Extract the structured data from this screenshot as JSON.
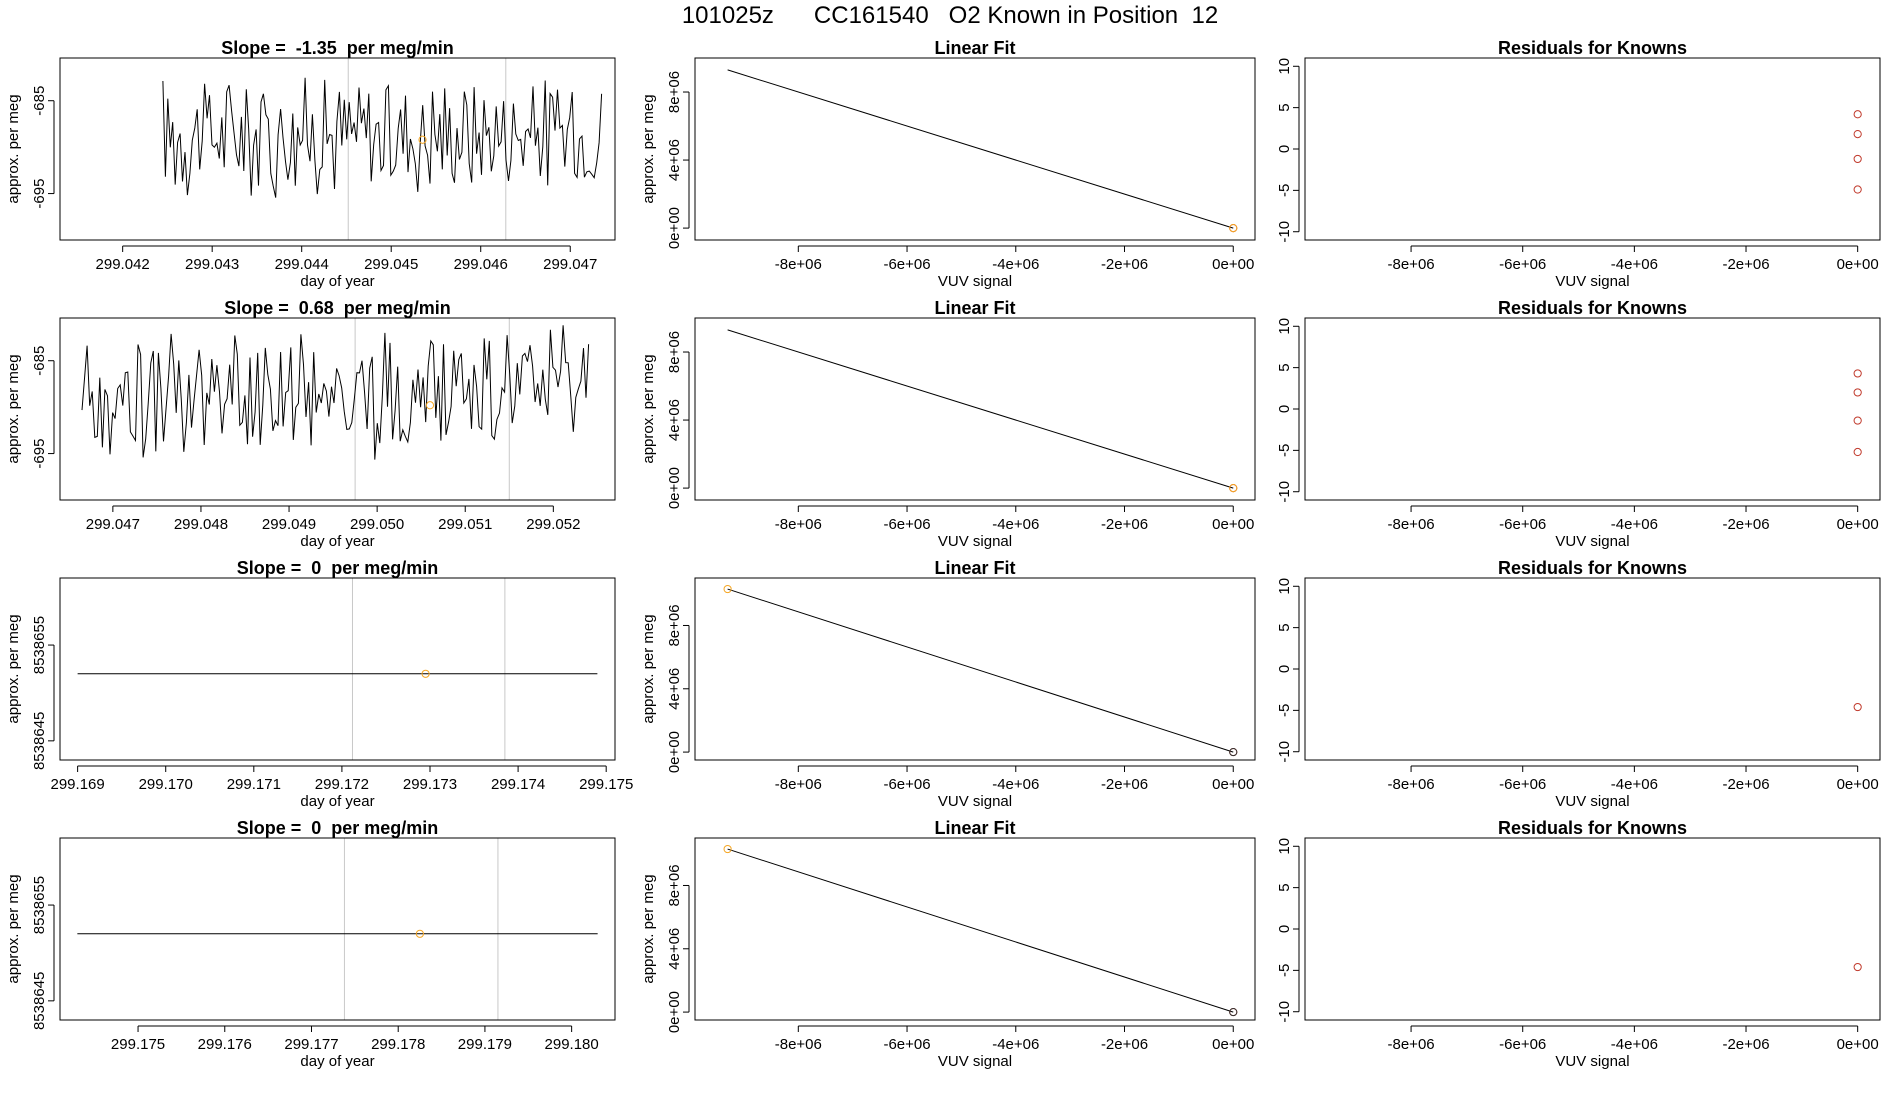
{
  "page": {
    "title": "101025z      CC161540   O2 Known in Position  12"
  },
  "colors": {
    "line": "#000000",
    "point_orange": "#f5a623",
    "point_red": "#c0392b",
    "vline": "#c8c8c8"
  },
  "chart_data": [
    {
      "type": "line",
      "row": 1,
      "col": 1,
      "title": "Slope =  -1.35  per meg/min",
      "xlabel": "day of year",
      "ylabel": "approx. per meg",
      "xlim": [
        299.0413,
        299.0475
      ],
      "ylim": [
        -700,
        -680.4
      ],
      "xticks": [
        299.042,
        299.043,
        299.044,
        299.045,
        299.046,
        299.047
      ],
      "xtick_labels": [
        "299.042",
        "299.043",
        "299.044",
        "299.045",
        "299.046",
        "299.047"
      ],
      "yticks": [
        -685,
        -695
      ],
      "ytick_labels": [
        "-685",
        "-695"
      ],
      "vlines": [
        299.04452,
        299.04628
      ],
      "points": [
        {
          "x": 299.04535,
          "y": -689.2,
          "color": "orange"
        }
      ],
      "noise": {
        "start": 299.04245,
        "end": 299.04735,
        "n": 180,
        "center": -688.5,
        "amp": 7.5,
        "seed": 17
      }
    },
    {
      "type": "scatter",
      "row": 1,
      "col": 2,
      "title": "Linear Fit",
      "xlabel": "VUV signal",
      "ylabel": "approx. per meg",
      "xlim": [
        -9900000,
        400000
      ],
      "ylim": [
        -700000,
        10000000
      ],
      "xticks": [
        -8000000,
        -6000000,
        -4000000,
        -2000000,
        0
      ],
      "xtick_labels": [
        "-8e+06",
        "-6e+06",
        "-4e+06",
        "-2e+06",
        "0e+00"
      ],
      "yticks": [
        0,
        4000000,
        8000000
      ],
      "ytick_labels": [
        "0e+00",
        "4e+06",
        "8e+06"
      ],
      "fit_line": [
        [
          -9300000,
          9300000
        ],
        [
          0,
          0
        ]
      ],
      "points": [
        {
          "x": 0,
          "y": 0,
          "color": "red"
        },
        {
          "x": 0,
          "y": 0,
          "color": "orange"
        }
      ]
    },
    {
      "type": "scatter",
      "row": 1,
      "col": 3,
      "title": "Residuals for Knowns",
      "xlabel": "VUV signal",
      "ylabel": "",
      "xlim": [
        -9900000,
        400000
      ],
      "ylim": [
        -11,
        11
      ],
      "xticks": [
        -8000000,
        -6000000,
        -4000000,
        -2000000,
        0
      ],
      "xtick_labels": [
        "-8e+06",
        "-6e+06",
        "-4e+06",
        "-2e+06",
        "0e+00"
      ],
      "yticks": [
        -10,
        -5,
        0,
        5,
        10
      ],
      "ytick_labels": [
        "-10",
        "-5",
        "0",
        "5",
        "10"
      ],
      "points": [
        {
          "x": 0,
          "y": 4.2,
          "color": "red"
        },
        {
          "x": 0,
          "y": 1.8,
          "color": "red"
        },
        {
          "x": 0,
          "y": -1.2,
          "color": "red"
        },
        {
          "x": 0,
          "y": -4.9,
          "color": "red"
        }
      ]
    },
    {
      "type": "line",
      "row": 2,
      "col": 1,
      "title": "Slope =  0.68  per meg/min",
      "xlabel": "day of year",
      "ylabel": "approx. per meg",
      "xlim": [
        299.0464,
        299.0527
      ],
      "ylim": [
        -700,
        -680.4
      ],
      "xticks": [
        299.047,
        299.048,
        299.049,
        299.05,
        299.051,
        299.052
      ],
      "xtick_labels": [
        "299.047",
        "299.048",
        "299.049",
        "299.050",
        "299.051",
        "299.052"
      ],
      "yticks": [
        -685,
        -695
      ],
      "ytick_labels": [
        "-685",
        "-695"
      ],
      "vlines": [
        299.04975,
        299.0515
      ],
      "points": [
        {
          "x": 299.0506,
          "y": -689.8,
          "color": "orange"
        }
      ],
      "noise": {
        "start": 299.04665,
        "end": 299.0524,
        "n": 200,
        "center": -688.8,
        "amp": 7.8,
        "seed": 53
      }
    },
    {
      "type": "scatter",
      "row": 2,
      "col": 2,
      "title": "Linear Fit",
      "xlabel": "VUV signal",
      "ylabel": "approx. per meg",
      "xlim": [
        -9900000,
        400000
      ],
      "ylim": [
        -700000,
        10000000
      ],
      "xticks": [
        -8000000,
        -6000000,
        -4000000,
        -2000000,
        0
      ],
      "xtick_labels": [
        "-8e+06",
        "-6e+06",
        "-4e+06",
        "-2e+06",
        "0e+00"
      ],
      "yticks": [
        0,
        4000000,
        8000000
      ],
      "ytick_labels": [
        "0e+00",
        "4e+06",
        "8e+06"
      ],
      "fit_line": [
        [
          -9300000,
          9300000
        ],
        [
          0,
          0
        ]
      ],
      "points": [
        {
          "x": 0,
          "y": 0,
          "color": "red"
        },
        {
          "x": 0,
          "y": 0,
          "color": "orange"
        }
      ]
    },
    {
      "type": "scatter",
      "row": 2,
      "col": 3,
      "title": "Residuals for Knowns",
      "xlabel": "VUV signal",
      "ylabel": "",
      "xlim": [
        -9900000,
        400000
      ],
      "ylim": [
        -11,
        11
      ],
      "xticks": [
        -8000000,
        -6000000,
        -4000000,
        -2000000,
        0
      ],
      "xtick_labels": [
        "-8e+06",
        "-6e+06",
        "-4e+06",
        "-2e+06",
        "0e+00"
      ],
      "yticks": [
        -10,
        -5,
        0,
        5,
        10
      ],
      "ytick_labels": [
        "-10",
        "-5",
        "0",
        "5",
        "10"
      ],
      "points": [
        {
          "x": 0,
          "y": 4.3,
          "color": "red"
        },
        {
          "x": 0,
          "y": 2.0,
          "color": "red"
        },
        {
          "x": 0,
          "y": -1.4,
          "color": "red"
        },
        {
          "x": 0,
          "y": -5.2,
          "color": "red"
        }
      ]
    },
    {
      "type": "line",
      "row": 3,
      "col": 1,
      "title": "Slope =  0  per meg/min",
      "xlabel": "day of year",
      "ylabel": "approx. per meg",
      "xlim": [
        299.1688,
        299.1751
      ],
      "ylim": [
        8538643,
        8538662
      ],
      "xticks": [
        299.169,
        299.17,
        299.171,
        299.172,
        299.173,
        299.174,
        299.175
      ],
      "xtick_labels": [
        "299.169",
        "299.170",
        "299.171",
        "299.172",
        "299.173",
        "299.174",
        "299.175"
      ],
      "yticks": [
        8538645,
        8538655
      ],
      "ytick_labels": [
        "8538645",
        "8538655"
      ],
      "vlines": [
        299.17212,
        299.17385
      ],
      "points": [
        {
          "x": 299.17295,
          "y": 8538652,
          "color": "orange"
        }
      ],
      "flat": {
        "start": 299.169,
        "end": 299.1749,
        "y": 8538652
      }
    },
    {
      "type": "scatter",
      "row": 3,
      "col": 2,
      "title": "Linear Fit",
      "xlabel": "VUV signal",
      "ylabel": "approx. per meg",
      "xlim": [
        -9900000,
        400000
      ],
      "ylim": [
        -500000,
        11000000
      ],
      "xticks": [
        -8000000,
        -6000000,
        -4000000,
        -2000000,
        0
      ],
      "xtick_labels": [
        "-8e+06",
        "-6e+06",
        "-4e+06",
        "-2e+06",
        "0e+00"
      ],
      "yticks": [
        0,
        4000000,
        8000000
      ],
      "ytick_labels": [
        "0e+00",
        "4e+06",
        "8e+06"
      ],
      "fit_line": [
        [
          -9300000,
          10300000
        ],
        [
          0,
          0
        ]
      ],
      "points": [
        {
          "x": -9300000,
          "y": 10300000,
          "color": "orange"
        },
        {
          "x": 0,
          "y": 0,
          "color": "red"
        },
        {
          "x": 0,
          "y": 0,
          "color": "dark"
        }
      ]
    },
    {
      "type": "scatter",
      "row": 3,
      "col": 3,
      "title": "Residuals for Knowns",
      "xlabel": "VUV signal",
      "ylabel": "",
      "xlim": [
        -9900000,
        400000
      ],
      "ylim": [
        -11,
        11
      ],
      "xticks": [
        -8000000,
        -6000000,
        -4000000,
        -2000000,
        0
      ],
      "xtick_labels": [
        "-8e+06",
        "-6e+06",
        "-4e+06",
        "-2e+06",
        "0e+00"
      ],
      "yticks": [
        -10,
        -5,
        0,
        5,
        10
      ],
      "ytick_labels": [
        "-10",
        "-5",
        "0",
        "5",
        "10"
      ],
      "points": [
        {
          "x": 0,
          "y": -4.6,
          "color": "red"
        }
      ]
    },
    {
      "type": "line",
      "row": 4,
      "col": 1,
      "title": "Slope =  0  per meg/min",
      "xlabel": "day of year",
      "ylabel": "approx. per meg",
      "xlim": [
        299.1741,
        299.1805
      ],
      "ylim": [
        8538643,
        8538662
      ],
      "xticks": [
        299.175,
        299.176,
        299.177,
        299.178,
        299.179,
        299.18
      ],
      "xtick_labels": [
        "299.175",
        "299.176",
        "299.177",
        "299.178",
        "299.179",
        "299.180"
      ],
      "yticks": [
        8538645,
        8538655
      ],
      "ytick_labels": [
        "8538645",
        "8538655"
      ],
      "vlines": [
        299.17738,
        299.17915
      ],
      "points": [
        {
          "x": 299.17825,
          "y": 8538652,
          "color": "orange"
        }
      ],
      "flat": {
        "start": 299.1743,
        "end": 299.1803,
        "y": 8538652
      }
    },
    {
      "type": "scatter",
      "row": 4,
      "col": 2,
      "title": "Linear Fit",
      "xlabel": "VUV signal",
      "ylabel": "approx. per meg",
      "xlim": [
        -9900000,
        400000
      ],
      "ylim": [
        -500000,
        11000000
      ],
      "xticks": [
        -8000000,
        -6000000,
        -4000000,
        -2000000,
        0
      ],
      "xtick_labels": [
        "-8e+06",
        "-6e+06",
        "-4e+06",
        "-2e+06",
        "0e+00"
      ],
      "yticks": [
        0,
        4000000,
        8000000
      ],
      "ytick_labels": [
        "0e+00",
        "4e+06",
        "8e+06"
      ],
      "fit_line": [
        [
          -9300000,
          10300000
        ],
        [
          0,
          0
        ]
      ],
      "points": [
        {
          "x": -9300000,
          "y": 10300000,
          "color": "orange"
        },
        {
          "x": 0,
          "y": 0,
          "color": "red"
        },
        {
          "x": 0,
          "y": 0,
          "color": "dark"
        }
      ]
    },
    {
      "type": "scatter",
      "row": 4,
      "col": 3,
      "title": "Residuals for Knowns",
      "xlabel": "VUV signal",
      "ylabel": "",
      "xlim": [
        -9900000,
        400000
      ],
      "ylim": [
        -11,
        11
      ],
      "xticks": [
        -8000000,
        -6000000,
        -4000000,
        -2000000,
        0
      ],
      "xtick_labels": [
        "-8e+06",
        "-6e+06",
        "-4e+06",
        "-2e+06",
        "0e+00"
      ],
      "yticks": [
        -10,
        -5,
        0,
        5,
        10
      ],
      "ytick_labels": [
        "-10",
        "-5",
        "0",
        "5",
        "10"
      ],
      "points": [
        {
          "x": 0,
          "y": -4.6,
          "color": "red"
        }
      ]
    }
  ]
}
